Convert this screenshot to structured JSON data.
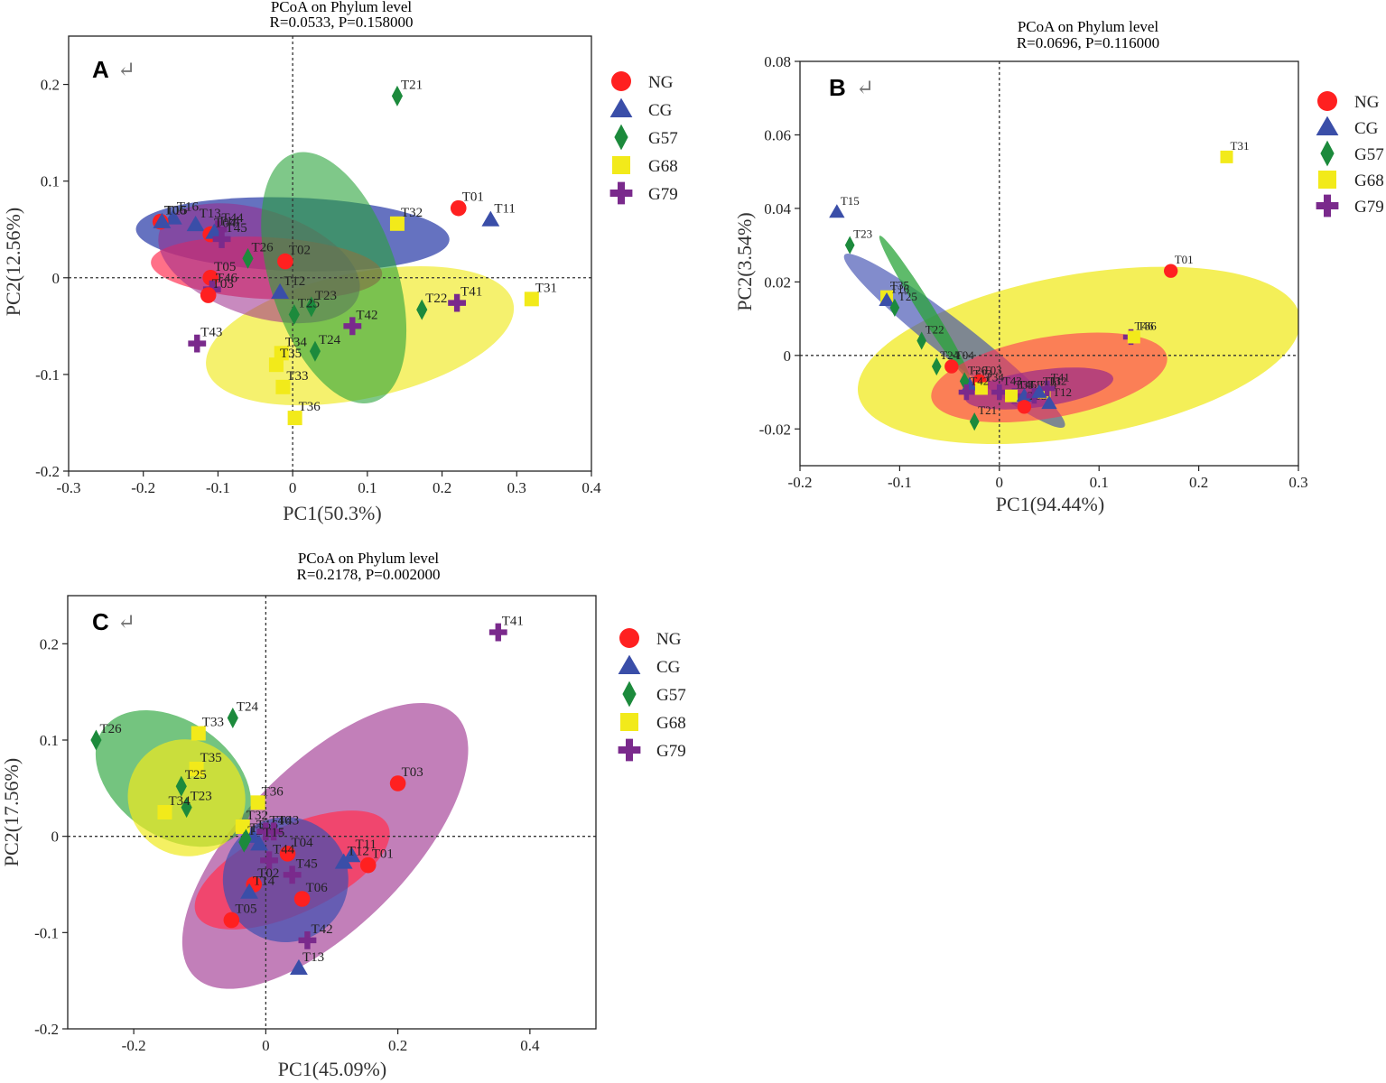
{
  "legend_order": [
    "NG",
    "CG",
    "G57",
    "G68",
    "G79"
  ],
  "group_styles": {
    "NG": {
      "color": "#ff2020",
      "marker": "circle",
      "ellipse": "#ff3355"
    },
    "CG": {
      "color": "#3a4ea8",
      "marker": "triangle",
      "ellipse": "#3f4fb0"
    },
    "G57": {
      "color": "#1c8a3c",
      "marker": "diamond",
      "ellipse": "#2aa43a"
    },
    "G68": {
      "color": "#f2ea1a",
      "marker": "square",
      "ellipse": "#f0ea20"
    },
    "G79": {
      "color": "#7a2a8c",
      "marker": "plus",
      "ellipse": "#9a2a8a"
    }
  },
  "return_glyph": "↵",
  "chart_data": [
    {
      "panel": "A",
      "type": "scatter",
      "title": "PCoA on Phylum level",
      "subtitle": "R=0.0533, P=0.158000",
      "xlabel": "PC1(50.3%)",
      "ylabel": "PC2(12.56%)",
      "xlim": [
        -0.3,
        0.4
      ],
      "ylim": [
        -0.2,
        0.25
      ],
      "xticks": [
        -0.3,
        -0.2,
        -0.1,
        0,
        0.1,
        0.2,
        0.3,
        0.4
      ],
      "xtick_labels": [
        "-0.3",
        "-0.2",
        "-0.1",
        "0",
        "0.1",
        "0.2",
        "0.3",
        "0.4"
      ],
      "yticks": [
        -0.2,
        -0.1,
        0,
        0.1,
        0.2
      ],
      "ytick_labels": [
        "-0.2",
        "-0.1",
        "0",
        "0.1",
        "0.2"
      ],
      "legend_position": "right-top",
      "ellipses": [
        {
          "group": "G68",
          "cx": 0.09,
          "cy": -0.06,
          "rx": 0.21,
          "ry": 0.065,
          "angle": 12,
          "opacity": 0.65
        },
        {
          "group": "CG",
          "cx": 0.0,
          "cy": 0.045,
          "rx": 0.21,
          "ry": 0.038,
          "angle": -2,
          "opacity": 0.8
        },
        {
          "group": "NG",
          "cx": -0.035,
          "cy": 0.01,
          "rx": 0.155,
          "ry": 0.032,
          "angle": -3,
          "opacity": 0.7
        },
        {
          "group": "G79",
          "cx": -0.045,
          "cy": 0.015,
          "rx": 0.14,
          "ry": 0.055,
          "angle": -18,
          "opacity": 0.55
        },
        {
          "group": "G57",
          "cx": 0.055,
          "cy": 0.0,
          "rx": 0.085,
          "ry": 0.135,
          "angle": 18,
          "opacity": 0.6
        }
      ],
      "points": [
        {
          "label": "T21",
          "group": "G57",
          "x": 0.14,
          "y": 0.188
        },
        {
          "label": "T01",
          "group": "NG",
          "x": 0.222,
          "y": 0.072
        },
        {
          "label": "T11",
          "group": "CG",
          "x": 0.265,
          "y": 0.06
        },
        {
          "label": "T16",
          "group": "CG",
          "x": -0.16,
          "y": 0.062
        },
        {
          "label": "T06",
          "group": "NG",
          "x": -0.177,
          "y": 0.058
        },
        {
          "label": "T15",
          "group": "CG",
          "x": -0.175,
          "y": 0.058
        },
        {
          "label": "T13",
          "group": "CG",
          "x": -0.13,
          "y": 0.055
        },
        {
          "label": "T44",
          "group": "G79",
          "x": -0.1,
          "y": 0.05
        },
        {
          "label": "T04",
          "group": "NG",
          "x": -0.11,
          "y": 0.045
        },
        {
          "label": "T14",
          "group": "CG",
          "x": -0.105,
          "y": 0.047
        },
        {
          "label": "T45",
          "group": "G79",
          "x": -0.095,
          "y": 0.04
        },
        {
          "label": "T32",
          "group": "G68",
          "x": 0.14,
          "y": 0.056
        },
        {
          "label": "T26",
          "group": "G57",
          "x": -0.06,
          "y": 0.02
        },
        {
          "label": "T02",
          "group": "NG",
          "x": -0.01,
          "y": 0.017
        },
        {
          "label": "T05",
          "group": "NG",
          "x": -0.11,
          "y": 0.0
        },
        {
          "label": "T46",
          "group": "G79",
          "x": -0.108,
          "y": -0.012
        },
        {
          "label": "T03",
          "group": "NG",
          "x": -0.113,
          "y": -0.018
        },
        {
          "label": "T12",
          "group": "CG",
          "x": -0.017,
          "y": -0.015
        },
        {
          "label": "T23",
          "group": "G57",
          "x": 0.025,
          "y": -0.03
        },
        {
          "label": "T25",
          "group": "G57",
          "x": 0.002,
          "y": -0.038
        },
        {
          "label": "T22",
          "group": "G57",
          "x": 0.173,
          "y": -0.033
        },
        {
          "label": "T41",
          "group": "G79",
          "x": 0.22,
          "y": -0.026
        },
        {
          "label": "T31",
          "group": "G68",
          "x": 0.32,
          "y": -0.022
        },
        {
          "label": "T42",
          "group": "G79",
          "x": 0.08,
          "y": -0.05
        },
        {
          "label": "T43",
          "group": "G79",
          "x": -0.128,
          "y": -0.068
        },
        {
          "label": "T24",
          "group": "G57",
          "x": 0.03,
          "y": -0.076
        },
        {
          "label": "T34",
          "group": "G68",
          "x": -0.015,
          "y": -0.078
        },
        {
          "label": "T35",
          "group": "G68",
          "x": -0.022,
          "y": -0.09
        },
        {
          "label": "T33",
          "group": "G68",
          "x": -0.013,
          "y": -0.113
        },
        {
          "label": "T36",
          "group": "G68",
          "x": 0.003,
          "y": -0.145
        }
      ]
    },
    {
      "panel": "B",
      "type": "scatter",
      "title": "PCoA on Phylum level",
      "subtitle": "R=0.0696, P=0.116000",
      "xlabel": "PC1(94.44%)",
      "ylabel": "PC2(3.54%)",
      "xlim": [
        -0.2,
        0.3
      ],
      "ylim": [
        -0.03,
        0.08
      ],
      "xticks": [
        -0.2,
        -0.1,
        0,
        0.1,
        0.2,
        0.3
      ],
      "xtick_labels": [
        "-0.2",
        "-0.1",
        "0",
        "0.1",
        "0.2",
        "0.3"
      ],
      "yticks": [
        -0.02,
        0,
        0.02,
        0.04,
        0.06,
        0.08
      ],
      "ytick_labels": [
        "-0.02",
        "0",
        "0.02",
        "0.04",
        "0.06",
        "0.08"
      ],
      "legend_position": "right-top",
      "ellipses": [
        {
          "group": "G68",
          "cx": 0.08,
          "cy": 0.0,
          "rx": 0.225,
          "ry": 0.022,
          "angle": 10,
          "opacity": 0.75
        },
        {
          "group": "CG",
          "cx": -0.045,
          "cy": 0.004,
          "rx": 0.14,
          "ry": 0.005,
          "angle": -38,
          "opacity": 0.65
        },
        {
          "group": "G57",
          "cx": -0.075,
          "cy": 0.013,
          "rx": 0.085,
          "ry": 0.002,
          "angle": -58,
          "opacity": 0.75
        },
        {
          "group": "NG",
          "cx": 0.05,
          "cy": -0.006,
          "rx": 0.12,
          "ry": 0.011,
          "angle": 10,
          "opacity": 0.6
        },
        {
          "group": "G79",
          "cx": 0.04,
          "cy": -0.009,
          "rx": 0.075,
          "ry": 0.005,
          "angle": 8,
          "opacity": 0.7
        }
      ],
      "points": [
        {
          "label": "T31",
          "group": "G68",
          "x": 0.228,
          "y": 0.054
        },
        {
          "label": "T15",
          "group": "CG",
          "x": -0.163,
          "y": 0.039
        },
        {
          "label": "T23",
          "group": "G57",
          "x": -0.15,
          "y": 0.03
        },
        {
          "label": "T01",
          "group": "NG",
          "x": 0.172,
          "y": 0.023
        },
        {
          "label": "T35",
          "group": "G68",
          "x": -0.113,
          "y": 0.016
        },
        {
          "label": "T16",
          "group": "CG",
          "x": -0.113,
          "y": 0.015
        },
        {
          "label": "T25",
          "group": "G57",
          "x": -0.105,
          "y": 0.013
        },
        {
          "label": "T22",
          "group": "G57",
          "x": -0.078,
          "y": 0.004
        },
        {
          "label": "T46",
          "group": "G79",
          "x": 0.132,
          "y": 0.005
        },
        {
          "label": "T36",
          "group": "G68",
          "x": 0.135,
          "y": 0.005
        },
        {
          "label": "T24",
          "group": "G57",
          "x": -0.063,
          "y": -0.003
        },
        {
          "label": "T04",
          "group": "NG",
          "x": -0.048,
          "y": -0.003
        },
        {
          "label": "T13",
          "group": "CG",
          "x": -0.03,
          "y": -0.008
        },
        {
          "label": "T03",
          "group": "NG",
          "x": -0.02,
          "y": -0.007
        },
        {
          "label": "T26",
          "group": "G57",
          "x": -0.035,
          "y": -0.007
        },
        {
          "label": "T34",
          "group": "G68",
          "x": -0.018,
          "y": -0.009
        },
        {
          "label": "T42",
          "group": "G79",
          "x": -0.033,
          "y": -0.01
        },
        {
          "label": "T43",
          "group": "G79",
          "x": 0.0,
          "y": -0.01
        },
        {
          "label": "T45",
          "group": "G79",
          "x": 0.015,
          "y": -0.011
        },
        {
          "label": "T33",
          "group": "G68",
          "x": 0.012,
          "y": -0.011
        },
        {
          "label": "T14",
          "group": "CG",
          "x": 0.025,
          "y": -0.011
        },
        {
          "label": "T05",
          "group": "NG",
          "x": 0.025,
          "y": -0.014
        },
        {
          "label": "T44",
          "group": "G79",
          "x": 0.035,
          "y": -0.011
        },
        {
          "label": "T32",
          "group": "G68",
          "x": 0.045,
          "y": -0.01
        },
        {
          "label": "T12",
          "group": "CG",
          "x": 0.05,
          "y": -0.013
        },
        {
          "label": "T41",
          "group": "G79",
          "x": 0.048,
          "y": -0.009
        },
        {
          "label": "T11",
          "group": "CG",
          "x": 0.04,
          "y": -0.01
        },
        {
          "label": "T21",
          "group": "G57",
          "x": -0.025,
          "y": -0.018
        }
      ]
    },
    {
      "panel": "C",
      "type": "scatter",
      "title": "PCoA on Phylum level",
      "subtitle": "R=0.2178, P=0.002000",
      "xlabel": "PC1(45.09%)",
      "ylabel": "PC2(17.56%)",
      "xlim": [
        -0.3,
        0.5
      ],
      "ylim": [
        -0.2,
        0.25
      ],
      "xticks": [
        -0.2,
        0,
        0.2,
        0.4
      ],
      "xtick_labels": [
        "-0.2",
        "0",
        "0.2",
        "0.4"
      ],
      "yticks": [
        -0.2,
        -0.1,
        0,
        0.1,
        0.2
      ],
      "ytick_labels": [
        "-0.2",
        "-0.1",
        "0",
        "0.1",
        "0.2"
      ],
      "legend_position": "right-top",
      "ellipses": [
        {
          "group": "G79",
          "cx": 0.09,
          "cy": -0.01,
          "rx": 0.28,
          "ry": 0.085,
          "angle": 45,
          "opacity": 0.6
        },
        {
          "group": "NG",
          "cx": 0.04,
          "cy": -0.035,
          "rx": 0.16,
          "ry": 0.045,
          "angle": 25,
          "opacity": 0.75
        },
        {
          "group": "CG",
          "cx": 0.03,
          "cy": -0.045,
          "rx": 0.095,
          "ry": 0.065,
          "angle": 15,
          "opacity": 0.7
        },
        {
          "group": "G57",
          "cx": -0.14,
          "cy": 0.06,
          "rx": 0.13,
          "ry": 0.06,
          "angle": -35,
          "opacity": 0.65
        },
        {
          "group": "G68",
          "cx": -0.12,
          "cy": 0.04,
          "rx": 0.09,
          "ry": 0.06,
          "angle": -40,
          "opacity": 0.7
        }
      ],
      "points": [
        {
          "label": "T41",
          "group": "G79",
          "x": 0.352,
          "y": 0.212
        },
        {
          "label": "T26",
          "group": "G57",
          "x": -0.257,
          "y": 0.1
        },
        {
          "label": "T24",
          "group": "G57",
          "x": -0.05,
          "y": 0.123
        },
        {
          "label": "T33",
          "group": "G68",
          "x": -0.102,
          "y": 0.107
        },
        {
          "label": "T35",
          "group": "G68",
          "x": -0.105,
          "y": 0.07
        },
        {
          "label": "T25",
          "group": "G57",
          "x": -0.128,
          "y": 0.052
        },
        {
          "label": "T23",
          "group": "G57",
          "x": -0.12,
          "y": 0.03
        },
        {
          "label": "T34",
          "group": "G68",
          "x": -0.153,
          "y": 0.025
        },
        {
          "label": "T36",
          "group": "G68",
          "x": -0.012,
          "y": 0.035
        },
        {
          "label": "T03",
          "group": "NG",
          "x": 0.2,
          "y": 0.055
        },
        {
          "label": "T32",
          "group": "G68",
          "x": -0.035,
          "y": 0.01
        },
        {
          "label": "T16",
          "group": "CG",
          "x": -0.02,
          "y": 0.0
        },
        {
          "label": "T22",
          "group": "G57",
          "x": -0.03,
          "y": -0.003
        },
        {
          "label": "T21",
          "group": "G57",
          "x": -0.033,
          "y": -0.006
        },
        {
          "label": "T46",
          "group": "G79",
          "x": 0.0,
          "y": 0.005
        },
        {
          "label": "T43",
          "group": "G79",
          "x": 0.012,
          "y": 0.005
        },
        {
          "label": "T15",
          "group": "CG",
          "x": -0.01,
          "y": -0.008
        },
        {
          "label": "T04",
          "group": "NG",
          "x": 0.033,
          "y": -0.018
        },
        {
          "label": "T11",
          "group": "CG",
          "x": 0.13,
          "y": -0.02
        },
        {
          "label": "T12",
          "group": "CG",
          "x": 0.118,
          "y": -0.027
        },
        {
          "label": "T01",
          "group": "NG",
          "x": 0.155,
          "y": -0.03
        },
        {
          "label": "T44",
          "group": "G79",
          "x": 0.005,
          "y": -0.025
        },
        {
          "label": "T45",
          "group": "G79",
          "x": 0.04,
          "y": -0.04
        },
        {
          "label": "T06",
          "group": "NG",
          "x": 0.055,
          "y": -0.065
        },
        {
          "label": "T02",
          "group": "NG",
          "x": -0.018,
          "y": -0.05
        },
        {
          "label": "T14",
          "group": "CG",
          "x": -0.025,
          "y": -0.058
        },
        {
          "label": "T05",
          "group": "NG",
          "x": -0.052,
          "y": -0.087
        },
        {
          "label": "T42",
          "group": "G79",
          "x": 0.063,
          "y": -0.108
        },
        {
          "label": "T13",
          "group": "CG",
          "x": 0.05,
          "y": -0.137
        }
      ]
    }
  ]
}
